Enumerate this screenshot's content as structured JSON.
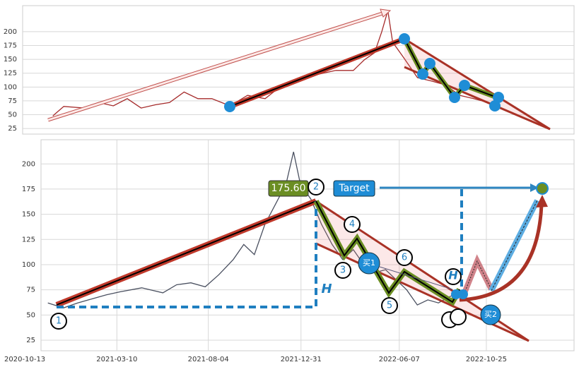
{
  "chart_data": [
    {
      "type": "line",
      "color": "#a52a2a",
      "x": [
        "2020-11-20",
        "2020-12-08",
        "2021-01-12",
        "2021-02-04",
        "2021-02-28",
        "2021-03-23",
        "2021-04-15",
        "2021-05-09",
        "2021-06-01",
        "2021-06-25",
        "2021-07-18",
        "2021-08-10",
        "2021-09-09",
        "2021-10-08",
        "2021-11-06",
        "2021-12-05",
        "2022-01-04",
        "2022-02-02",
        "2022-03-03",
        "2022-04-01",
        "2022-04-19",
        "2022-05-06",
        "2022-05-18",
        "2022-05-28",
        "2022-06-05",
        "2022-06-22",
        "2022-07-16",
        "2022-08-08",
        "2022-08-31",
        "2022-09-24",
        "2022-10-17",
        "2022-11-10",
        "2022-11-27"
      ],
      "values": [
        48,
        65,
        62,
        72,
        66,
        79,
        62,
        68,
        72,
        91,
        79,
        79,
        66,
        85,
        79,
        104,
        111,
        123,
        130,
        130,
        149,
        162,
        200,
        238,
        181,
        155,
        117,
        111,
        104,
        85,
        79,
        72,
        66
      ],
      "xlim": [
        "2020-10-01",
        "2023-04-01"
      ],
      "ylim": [
        15,
        247
      ],
      "yticks": [
        25,
        50,
        75,
        100,
        125,
        150,
        175,
        200
      ],
      "grid": true
    },
    {
      "type": "line",
      "color": "#4a5060",
      "x": [
        "2020-11-19",
        "2020-12-14",
        "2021-01-06",
        "2021-01-29",
        "2021-02-21",
        "2021-03-15",
        "2021-04-19",
        "2021-05-23",
        "2021-06-14",
        "2021-07-07",
        "2021-07-30",
        "2021-08-21",
        "2021-09-13",
        "2021-09-30",
        "2021-10-17",
        "2021-11-03",
        "2021-11-20",
        "2021-12-07",
        "2021-12-19",
        "2021-12-30",
        "2022-01-16",
        "2022-02-02",
        "2022-02-19",
        "2022-03-08",
        "2022-03-25",
        "2022-04-11",
        "2022-04-28",
        "2022-05-16",
        "2022-06-02",
        "2022-06-19",
        "2022-07-06",
        "2022-07-23",
        "2022-08-09",
        "2022-08-26",
        "2022-09-12"
      ],
      "values": [
        62,
        57,
        62,
        66,
        70,
        73,
        77,
        72,
        80,
        82,
        78,
        90,
        105,
        120,
        110,
        140,
        160,
        180,
        212,
        180,
        165,
        140,
        120,
        105,
        115,
        100,
        92,
        95,
        85,
        75,
        60,
        65,
        62,
        68,
        72
      ],
      "xlim": [
        "2020-11-08",
        "2023-03-15"
      ],
      "ylim": [
        14.5,
        224
      ],
      "xticks": [
        "2020-10-13",
        "2021-03-10",
        "2021-08-04",
        "2021-12-31",
        "2022-06-07",
        "2022-10-25"
      ],
      "yticks": [
        25,
        50,
        75,
        100,
        125,
        150,
        175,
        200
      ],
      "grid": true,
      "annotations": {
        "price_tag": "175.60",
        "target": "Target",
        "buy1": "买1",
        "buy2": "买2",
        "height": "H",
        "points": [
          "1",
          "2",
          "3",
          "4",
          "5",
          "6"
        ]
      }
    }
  ]
}
